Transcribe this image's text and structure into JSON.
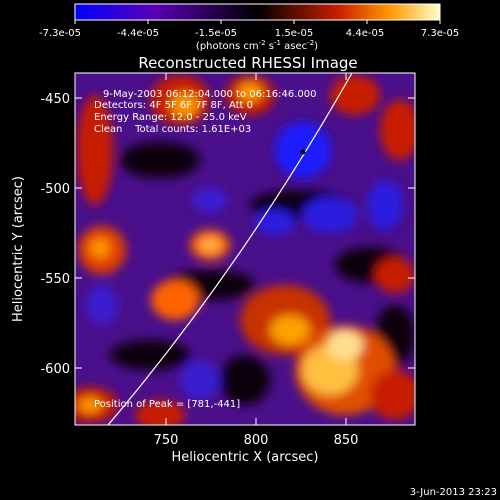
{
  "colorbar": {
    "ticks": [
      "-7.3e-05",
      "-4.4e-05",
      "-1.5e-05",
      "1.5e-05",
      "4.4e-05",
      "7.3e-05"
    ],
    "unit_main": "(photons cm",
    "unit_exp1": "-2",
    "unit_mid": " s",
    "unit_exp2": "-1",
    "unit_mid2": " asec",
    "unit_exp3": "-2",
    "unit_end": ")"
  },
  "plot": {
    "title": "Reconstructed RHESSI Image",
    "xlabel": "Heliocentric X (arcsec)",
    "ylabel": "Heliocentric Y (arcsec)",
    "xticks": [
      "750",
      "800",
      "850"
    ],
    "yticks": [
      "-450",
      "-500",
      "-550",
      "-600"
    ],
    "annotations": {
      "time": "9-May-2003 06:12:04.000 to 06:16:46.000",
      "detectors": "Detectors: 4F 5F 6F 7F 8F, Att 0",
      "energy": "Energy Range: 12.0 - 25.0 keV",
      "clean": "Clean    Total counts: 1.61E+03",
      "peak": "Position of Peak = [781,-441]"
    }
  },
  "footer": {
    "date": "3-Jun-2013 23:23"
  },
  "colors": {
    "colormap": [
      "#0000ff",
      "#5a00b4",
      "#000000",
      "#c81e00",
      "#ff9600",
      "#ffffc8"
    ]
  }
}
